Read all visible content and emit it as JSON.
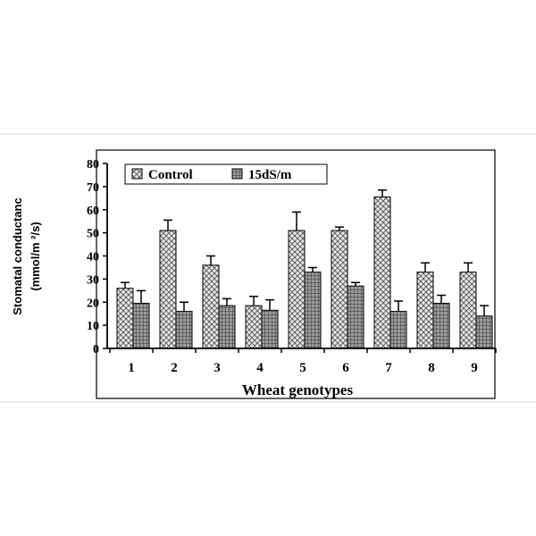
{
  "chart_data": {
    "type": "bar",
    "categories": [
      "1",
      "2",
      "3",
      "4",
      "5",
      "6",
      "7",
      "8",
      "9"
    ],
    "series": [
      {
        "name": "Control",
        "values": [
          26,
          51,
          36,
          18.5,
          51,
          51,
          65.5,
          33,
          33
        ],
        "errors": [
          2.5,
          4.5,
          4,
          4,
          8,
          1.5,
          3,
          4,
          4
        ],
        "pattern": "crosshatch-light"
      },
      {
        "name": "15dS/m",
        "values": [
          19.5,
          16,
          18.5,
          16.5,
          33,
          27,
          16,
          19.5,
          14
        ],
        "errors": [
          5.5,
          4,
          3,
          4.5,
          2,
          1.5,
          4.5,
          3.5,
          4.5
        ],
        "pattern": "grid-dark"
      }
    ],
    "xlabel": "Wheat genotypes",
    "ylabel_line1": "Stomatal conductanc",
    "ylabel_line2": "(mmol/m ²/s)",
    "ylim": [
      0,
      80
    ],
    "yticks": [
      "0",
      "10",
      "20",
      "30",
      "40",
      "50",
      "60",
      "70",
      "80"
    ],
    "legend_position": "top-left",
    "grid": false
  }
}
